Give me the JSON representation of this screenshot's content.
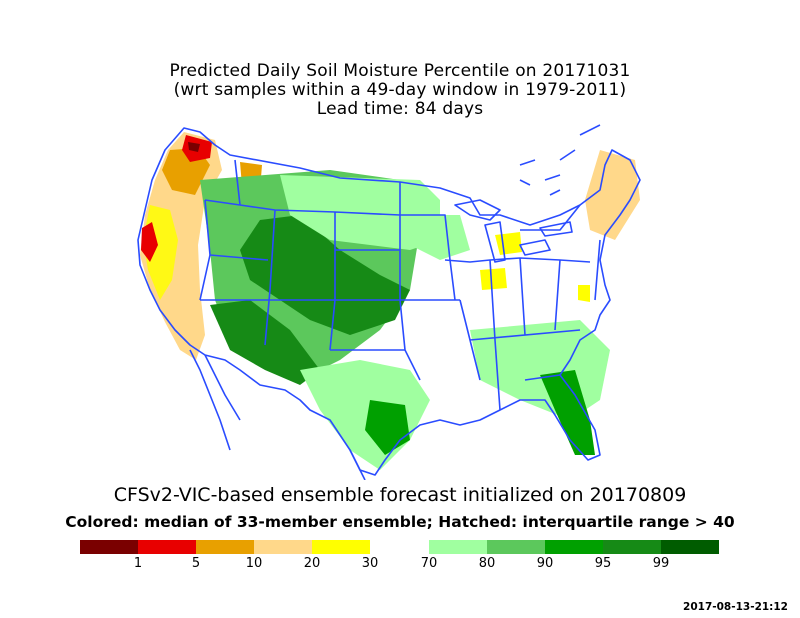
{
  "title": {
    "line1": "Predicted Daily Soil Moisture Percentile on 20171031",
    "line2": "(wrt samples within a 49-day window in 1979-2011)",
    "line3": "Lead time: 84 days"
  },
  "subtitle": {
    "line1": "CFSv2-VIC-based ensemble forecast initialized on 20170809",
    "line2": "Colored: median of 33-member ensemble; Hatched: interquartile range > 40"
  },
  "legend": {
    "low_colors": [
      "#7a0000",
      "#e80000",
      "#e8a000",
      "#ffd88a",
      "#ffff00"
    ],
    "high_colors": [
      "#a0ffa0",
      "#5cc85c",
      "#00a000",
      "#168a16",
      "#005c00"
    ],
    "labels": [
      "1",
      "5",
      "10",
      "20",
      "30",
      "70",
      "80",
      "90",
      "95",
      "99"
    ]
  },
  "timestamp": "2017-08-13-21:12",
  "colors": {
    "boundary": "#2a4cff",
    "background": "#ffffff"
  }
}
